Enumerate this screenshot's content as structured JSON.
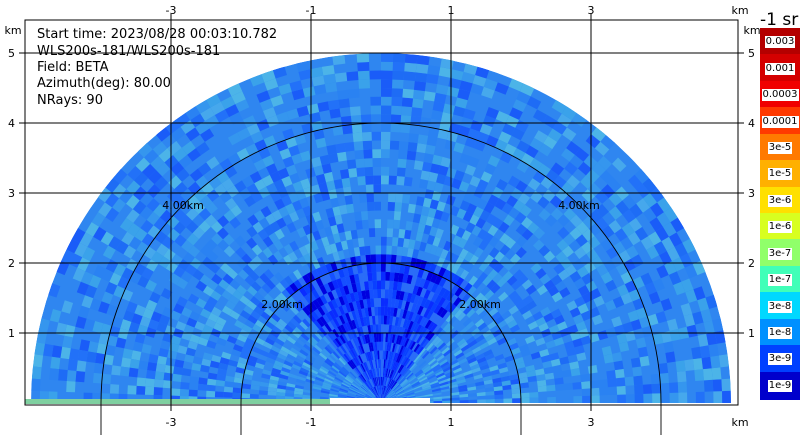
{
  "header": {
    "start_time": "Start time: 2023/08/28 00:03:10.782",
    "instrument": "WLS200s-181/WLS200s-181",
    "field": "Field: BETA",
    "azimuth": "Azimuth(deg): 80.00",
    "nrays": "NRays: 90"
  },
  "colorbar": {
    "unit": "-1 sr",
    "labels": [
      "0.003",
      "0.001",
      "0.0003",
      "0.0001",
      "3e-5",
      "1e-5",
      "3e-6",
      "1e-6",
      "3e-7",
      "1e-7",
      "3e-8",
      "1e-8",
      "3e-9",
      "1e-9"
    ],
    "colors": [
      "#b40000",
      "#d40000",
      "#f00000",
      "#ff3a00",
      "#ff7a00",
      "#ffb000",
      "#ffe000",
      "#d8ff20",
      "#90ff6a",
      "#40ffb8",
      "#00d8ff",
      "#0090ff",
      "#0040ff",
      "#0000cc"
    ],
    "top_cap_color": "#8a0000",
    "bottom_cap_color": "#000080"
  },
  "chart_data": {
    "type": "heatmap",
    "title": "",
    "xlabel": "km",
    "ylabel": "km",
    "xlim": [
      -3.8,
      3.8
    ],
    "ylim": [
      0,
      5.8
    ],
    "x_ticks": [
      -3,
      -1,
      1,
      3
    ],
    "y_ticks": [
      1,
      2,
      3,
      4,
      5
    ],
    "x_tick_labels": [
      "-3",
      "-1",
      "1",
      "3"
    ],
    "y_tick_labels": [
      "1",
      "2",
      "3",
      "4",
      "5"
    ],
    "axis_unit_label": "km",
    "range_rings_km": [
      2,
      4
    ],
    "range_ring_labels": [
      "2.00km",
      "2.00km",
      "4.00km",
      "4.00km"
    ],
    "max_range_km": 5.0,
    "grid": true,
    "sector": "0-180 deg elevation scan (RHI)",
    "colors": {
      "background_field": "#2f86f0",
      "near_range_field": "#0a3cff",
      "grid": "#000000"
    }
  }
}
